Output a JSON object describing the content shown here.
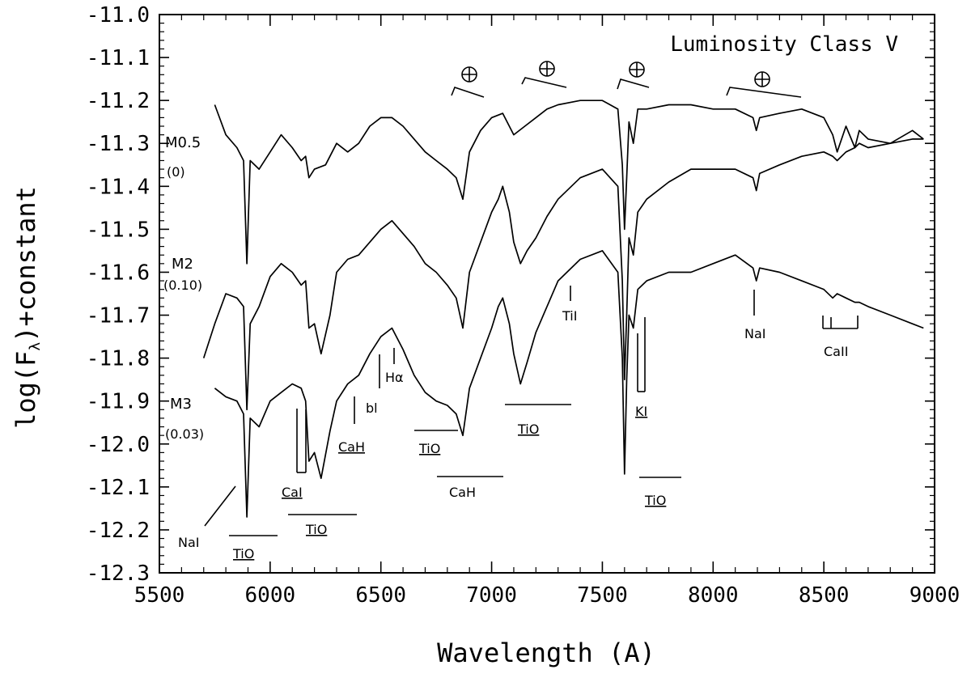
{
  "chart_data": {
    "type": "line",
    "title": "Luminosity Class V",
    "xlabel": "Wavelength (A)",
    "ylabel": "log(F",
    "ylabel_sub": "λ",
    "ylabel_tail": ")+constant",
    "xlim": [
      5500,
      9000
    ],
    "ylim": [
      -12.3,
      -11.0
    ],
    "xticks": [
      5500,
      6000,
      6500,
      7000,
      7500,
      8000,
      8500,
      9000
    ],
    "yticks": [
      -11.0,
      -11.1,
      -11.2,
      -11.3,
      -11.4,
      -11.5,
      -11.6,
      -11.7,
      -11.8,
      -11.9,
      -12.0,
      -12.1,
      -12.2,
      -12.3
    ],
    "xtick_labels": [
      "5500",
      "6000",
      "6500",
      "7000",
      "7500",
      "8000",
      "8500",
      "9000"
    ],
    "ytick_labels": [
      "-11.0",
      "-11.1",
      "-11.2",
      "-11.3",
      "-11.4",
      "-11.5",
      "-11.6",
      "-11.7",
      "-11.8",
      "-11.9",
      "-12.0",
      "-12.1",
      "-12.2",
      "-12.3"
    ],
    "series": [
      {
        "name": "M0.5",
        "sub": "(0)",
        "x": [
          5750,
          5800,
          5850,
          5880,
          5895,
          5910,
          5950,
          6000,
          6050,
          6100,
          6140,
          6160,
          6175,
          6200,
          6250,
          6300,
          6350,
          6400,
          6450,
          6500,
          6550,
          6600,
          6650,
          6700,
          6750,
          6800,
          6840,
          6870,
          6900,
          6950,
          7000,
          7050,
          7100,
          7150,
          7200,
          7250,
          7300,
          7400,
          7500,
          7570,
          7590,
          7600,
          7610,
          7620,
          7640,
          7660,
          7700,
          7800,
          7900,
          8000,
          8100,
          8180,
          8195,
          8210,
          8300,
          8400,
          8500,
          8540,
          8560,
          8600,
          8640,
          8660,
          8700,
          8800,
          8900,
          8950
        ],
        "values": [
          -11.21,
          -11.28,
          -11.31,
          -11.34,
          -11.58,
          -11.34,
          -11.36,
          -11.32,
          -11.28,
          -11.31,
          -11.34,
          -11.33,
          -11.38,
          -11.36,
          -11.35,
          -11.3,
          -11.32,
          -11.3,
          -11.26,
          -11.24,
          -11.24,
          -11.26,
          -11.29,
          -11.32,
          -11.34,
          -11.36,
          -11.38,
          -11.43,
          -11.32,
          -11.27,
          -11.24,
          -11.23,
          -11.28,
          -11.26,
          -11.24,
          -11.22,
          -11.21,
          -11.2,
          -11.2,
          -11.22,
          -11.35,
          -11.5,
          -11.38,
          -11.25,
          -11.3,
          -11.22,
          -11.22,
          -11.21,
          -11.21,
          -11.22,
          -11.22,
          -11.24,
          -11.27,
          -11.24,
          -11.23,
          -11.22,
          -11.24,
          -11.28,
          -11.32,
          -11.26,
          -11.31,
          -11.27,
          -11.29,
          -11.3,
          -11.27,
          -11.29
        ]
      },
      {
        "name": "M2",
        "sub": "(0.10)",
        "x": [
          5700,
          5750,
          5800,
          5850,
          5880,
          5895,
          5910,
          5950,
          6000,
          6050,
          6100,
          6140,
          6160,
          6175,
          6200,
          6230,
          6270,
          6300,
          6350,
          6400,
          6450,
          6500,
          6550,
          6600,
          6650,
          6700,
          6750,
          6800,
          6840,
          6870,
          6900,
          6950,
          7000,
          7030,
          7050,
          7080,
          7100,
          7130,
          7160,
          7200,
          7250,
          7300,
          7400,
          7500,
          7570,
          7590,
          7600,
          7610,
          7620,
          7640,
          7660,
          7700,
          7800,
          7900,
          8000,
          8100,
          8180,
          8195,
          8210,
          8300,
          8400,
          8500,
          8540,
          8560,
          8600,
          8640,
          8660,
          8700,
          8800,
          8900,
          8950
        ],
        "values": [
          -11.8,
          -11.72,
          -11.65,
          -11.66,
          -11.68,
          -11.92,
          -11.72,
          -11.68,
          -11.61,
          -11.58,
          -11.6,
          -11.63,
          -11.62,
          -11.73,
          -11.72,
          -11.79,
          -11.7,
          -11.6,
          -11.57,
          -11.56,
          -11.53,
          -11.5,
          -11.48,
          -11.51,
          -11.54,
          -11.58,
          -11.6,
          -11.63,
          -11.66,
          -11.73,
          -11.6,
          -11.53,
          -11.46,
          -11.43,
          -11.4,
          -11.46,
          -11.53,
          -11.58,
          -11.55,
          -11.52,
          -11.47,
          -11.43,
          -11.38,
          -11.36,
          -11.4,
          -11.62,
          -11.85,
          -11.7,
          -11.52,
          -11.56,
          -11.46,
          -11.43,
          -11.39,
          -11.36,
          -11.36,
          -11.36,
          -11.38,
          -11.41,
          -11.37,
          -11.35,
          -11.33,
          -11.32,
          -11.33,
          -11.34,
          -11.32,
          -11.31,
          -11.3,
          -11.31,
          -11.3,
          -11.29,
          -11.29
        ]
      },
      {
        "name": "M3",
        "sub": "(0.03)",
        "x": [
          5750,
          5800,
          5850,
          5880,
          5895,
          5910,
          5950,
          6000,
          6050,
          6100,
          6140,
          6160,
          6175,
          6200,
          6230,
          6270,
          6300,
          6350,
          6400,
          6450,
          6500,
          6550,
          6600,
          6650,
          6700,
          6750,
          6800,
          6840,
          6870,
          6900,
          6950,
          7000,
          7030,
          7050,
          7080,
          7100,
          7130,
          7160,
          7200,
          7250,
          7300,
          7400,
          7500,
          7570,
          7590,
          7600,
          7610,
          7620,
          7640,
          7660,
          7700,
          7800,
          7900,
          8000,
          8100,
          8180,
          8195,
          8210,
          8300,
          8400,
          8500,
          8540,
          8560,
          8600,
          8640,
          8660,
          8700,
          8800,
          8900,
          8950
        ],
        "values": [
          -11.87,
          -11.89,
          -11.9,
          -11.93,
          -12.17,
          -11.94,
          -11.96,
          -11.9,
          -11.88,
          -11.86,
          -11.87,
          -11.9,
          -12.04,
          -12.02,
          -12.08,
          -11.97,
          -11.9,
          -11.86,
          -11.84,
          -11.79,
          -11.75,
          -11.73,
          -11.78,
          -11.84,
          -11.88,
          -11.9,
          -11.91,
          -11.93,
          -11.98,
          -11.87,
          -11.8,
          -11.73,
          -11.68,
          -11.66,
          -11.72,
          -11.79,
          -11.86,
          -11.81,
          -11.74,
          -11.68,
          -11.62,
          -11.57,
          -11.55,
          -11.6,
          -11.8,
          -12.07,
          -11.85,
          -11.7,
          -11.73,
          -11.64,
          -11.62,
          -11.6,
          -11.6,
          -11.58,
          -11.56,
          -11.59,
          -11.62,
          -11.59,
          -11.6,
          -11.62,
          -11.64,
          -11.66,
          -11.65,
          -11.66,
          -11.67,
          -11.67,
          -11.68,
          -11.7,
          -11.72,
          -11.73
        ]
      }
    ],
    "annotations": [
      "NaI",
      "TiO",
      "CaI",
      "TiO",
      "CaH",
      "bl",
      "Hα",
      "TiO",
      "CaH",
      "TiO",
      "TiI",
      "KI",
      "TiO",
      "NaI",
      "CaII"
    ]
  }
}
